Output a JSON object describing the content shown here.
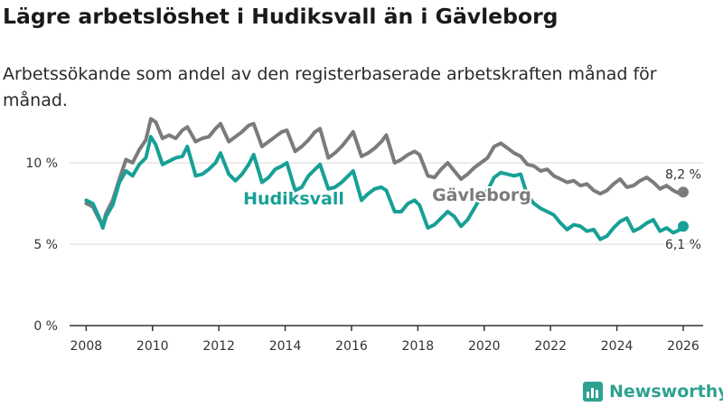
{
  "title": "Lägre arbetslöshet i Hudiksvall än i Gävleborg",
  "subtitle": "Arbetssökande som andel av den registerbaserade arbetskraften månad för månad.",
  "brand": "Newsworthy",
  "colors": {
    "hudiksvall": "#17a096",
    "gavleborg": "#7b7b7e",
    "grid": "#d9d9d9",
    "axis": "#333333",
    "brand": "#2fa191"
  },
  "chart_data": {
    "type": "line",
    "title": "Lägre arbetslöshet i Hudiksvall än i Gävleborg",
    "xlabel": "",
    "ylabel": "",
    "xlim": [
      2007.5,
      2026.6
    ],
    "ylim": [
      0,
      13
    ],
    "x_ticks": [
      2008,
      2010,
      2012,
      2014,
      2016,
      2018,
      2020,
      2022,
      2024,
      2026
    ],
    "y_ticks": [
      {
        "value": 0,
        "label": "0 %"
      },
      {
        "value": 5,
        "label": "5 %"
      },
      {
        "value": 10,
        "label": "10 %"
      }
    ],
    "series": [
      {
        "name": "Gävleborg",
        "label": "Gävleborg",
        "x": [
          2008.0,
          2008.2,
          2008.4,
          2008.5,
          2008.6,
          2008.8,
          2009.0,
          2009.2,
          2009.4,
          2009.6,
          2009.8,
          2009.95,
          2010.1,
          2010.3,
          2010.5,
          2010.7,
          2010.9,
          2011.05,
          2011.3,
          2011.5,
          2011.7,
          2011.9,
          2012.05,
          2012.3,
          2012.5,
          2012.7,
          2012.9,
          2013.05,
          2013.3,
          2013.5,
          2013.7,
          2013.9,
          2014.05,
          2014.3,
          2014.5,
          2014.7,
          2014.9,
          2015.05,
          2015.3,
          2015.5,
          2015.7,
          2015.9,
          2016.05,
          2016.3,
          2016.5,
          2016.7,
          2016.9,
          2017.05,
          2017.3,
          2017.5,
          2017.7,
          2017.9,
          2018.05,
          2018.3,
          2018.5,
          2018.7,
          2018.9,
          2019.1,
          2019.3,
          2019.5,
          2019.7,
          2019.9,
          2020.1,
          2020.3,
          2020.5,
          2020.7,
          2020.9,
          2021.1,
          2021.3,
          2021.5,
          2021.7,
          2021.9,
          2022.1,
          2022.3,
          2022.5,
          2022.7,
          2022.9,
          2023.1,
          2023.3,
          2023.5,
          2023.7,
          2023.9,
          2024.1,
          2024.3,
          2024.5,
          2024.7,
          2024.9,
          2025.1,
          2025.3,
          2025.5,
          2025.7,
          2025.9,
          2026.0
        ],
        "values": [
          7.5,
          7.3,
          6.5,
          6.2,
          6.9,
          7.7,
          9.0,
          10.2,
          10.0,
          10.8,
          11.4,
          12.7,
          12.5,
          11.5,
          11.7,
          11.5,
          12.0,
          12.2,
          11.3,
          11.5,
          11.6,
          12.1,
          12.4,
          11.3,
          11.6,
          11.9,
          12.3,
          12.4,
          11.0,
          11.3,
          11.6,
          11.9,
          12.0,
          10.7,
          11.0,
          11.4,
          11.9,
          12.1,
          10.3,
          10.6,
          11.0,
          11.5,
          11.9,
          10.4,
          10.6,
          10.9,
          11.3,
          11.7,
          10.0,
          10.2,
          10.5,
          10.7,
          10.5,
          9.2,
          9.1,
          9.6,
          10.0,
          9.5,
          9.0,
          9.3,
          9.7,
          10.0,
          10.3,
          11.0,
          11.2,
          10.9,
          10.6,
          10.4,
          9.9,
          9.8,
          9.5,
          9.6,
          9.2,
          9.0,
          8.8,
          8.9,
          8.6,
          8.7,
          8.3,
          8.1,
          8.3,
          8.7,
          9.0,
          8.5,
          8.6,
          8.9,
          9.1,
          8.8,
          8.4,
          8.6,
          8.3,
          8.1,
          8.2
        ],
        "end_label": "8,2 %"
      },
      {
        "name": "Hudiksvall",
        "label": "Hudiksvall",
        "x": [
          2008.0,
          2008.2,
          2008.4,
          2008.5,
          2008.6,
          2008.8,
          2009.0,
          2009.2,
          2009.4,
          2009.6,
          2009.8,
          2009.95,
          2010.1,
          2010.3,
          2010.5,
          2010.7,
          2010.9,
          2011.05,
          2011.3,
          2011.5,
          2011.7,
          2011.9,
          2012.05,
          2012.3,
          2012.5,
          2012.7,
          2012.9,
          2013.05,
          2013.3,
          2013.5,
          2013.7,
          2013.9,
          2014.05,
          2014.3,
          2014.5,
          2014.7,
          2014.9,
          2015.05,
          2015.3,
          2015.5,
          2015.7,
          2015.9,
          2016.05,
          2016.3,
          2016.5,
          2016.7,
          2016.9,
          2017.05,
          2017.3,
          2017.5,
          2017.7,
          2017.9,
          2018.05,
          2018.3,
          2018.5,
          2018.7,
          2018.9,
          2019.1,
          2019.3,
          2019.5,
          2019.7,
          2019.9,
          2020.1,
          2020.3,
          2020.5,
          2020.7,
          2020.9,
          2021.1,
          2021.3,
          2021.5,
          2021.7,
          2021.9,
          2022.1,
          2022.3,
          2022.5,
          2022.7,
          2022.9,
          2023.1,
          2023.3,
          2023.5,
          2023.7,
          2023.9,
          2024.1,
          2024.3,
          2024.5,
          2024.7,
          2024.9,
          2025.1,
          2025.3,
          2025.5,
          2025.7,
          2025.9,
          2026.0
        ],
        "values": [
          7.7,
          7.5,
          6.6,
          6.0,
          6.7,
          7.4,
          8.8,
          9.5,
          9.2,
          9.9,
          10.3,
          11.6,
          11.1,
          9.9,
          10.1,
          10.3,
          10.4,
          11.0,
          9.2,
          9.3,
          9.6,
          10.0,
          10.6,
          9.3,
          8.9,
          9.3,
          9.9,
          10.5,
          8.8,
          9.1,
          9.6,
          9.8,
          10.0,
          8.3,
          8.5,
          9.2,
          9.6,
          9.9,
          8.4,
          8.5,
          8.8,
          9.2,
          9.5,
          7.7,
          8.1,
          8.4,
          8.5,
          8.3,
          7.0,
          7.0,
          7.5,
          7.7,
          7.4,
          6.0,
          6.2,
          6.6,
          7.0,
          6.7,
          6.1,
          6.5,
          7.2,
          7.9,
          8.3,
          9.1,
          9.4,
          9.3,
          9.2,
          9.3,
          8.0,
          7.5,
          7.2,
          7.0,
          6.8,
          6.3,
          5.9,
          6.2,
          6.1,
          5.8,
          5.9,
          5.3,
          5.5,
          6.0,
          6.4,
          6.6,
          5.8,
          6.0,
          6.3,
          6.5,
          5.8,
          6.0,
          5.7,
          5.9,
          6.1
        ],
        "end_label": "6,1 %"
      }
    ]
  }
}
